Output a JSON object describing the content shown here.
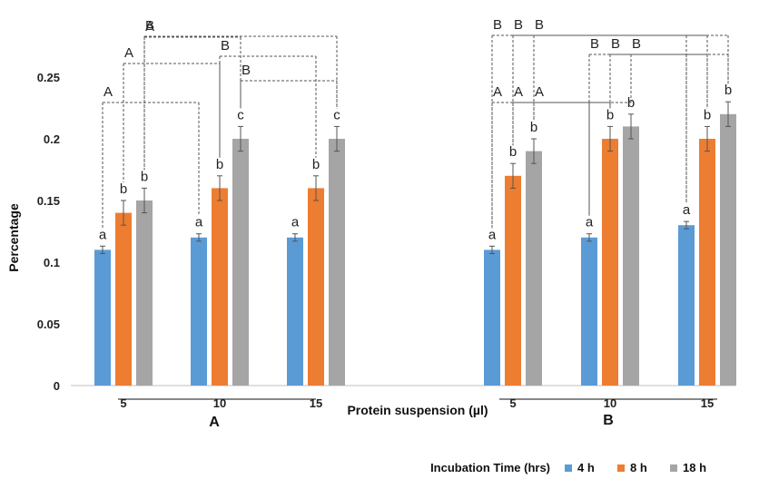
{
  "chart_data": {
    "type": "bar",
    "ylabel": "Percentage",
    "xlabel": "Protein suspension (µl)",
    "ylim": [
      0,
      0.25
    ],
    "y_ticks": [
      "0",
      "0.05",
      "0.1",
      "0.15",
      "0.2",
      "0.25"
    ],
    "legend_title": "Incubation Time (hrs)",
    "legend_position": "bottom-right",
    "grid": false,
    "series": [
      {
        "name": "4 h",
        "color": "#5B9BD5"
      },
      {
        "name": "8 h",
        "color": "#ED7D31"
      },
      {
        "name": "18 h",
        "color": "#A5A5A5"
      }
    ],
    "groups": [
      {
        "label": "A",
        "categories": [
          {
            "label": "5",
            "values": [
              0.11,
              0.14,
              0.15
            ],
            "errors": [
              0.003,
              0.01,
              0.01
            ],
            "letters": [
              "a",
              "b",
              "b"
            ]
          },
          {
            "label": "10",
            "values": [
              0.12,
              0.16,
              0.2
            ],
            "errors": [
              0.003,
              0.01,
              0.01
            ],
            "letters": [
              "a",
              "b",
              "c"
            ]
          },
          {
            "label": "15",
            "values": [
              0.12,
              0.16,
              0.2
            ],
            "errors": [
              0.003,
              0.01,
              0.01
            ],
            "letters": [
              "a",
              "b",
              "c"
            ]
          }
        ],
        "brackets": [
          {
            "series": 0,
            "letter": "A"
          },
          {
            "series": 1,
            "letter": "A"
          },
          {
            "series": 1,
            "letter": "B"
          },
          {
            "series": 2,
            "letter": "A"
          },
          {
            "series": 2,
            "letter": "B"
          },
          {
            "series": 2,
            "letter": "B"
          }
        ]
      },
      {
        "label": "B",
        "categories": [
          {
            "label": "5",
            "values": [
              0.11,
              0.17,
              0.19
            ],
            "errors": [
              0.003,
              0.01,
              0.01
            ],
            "letters": [
              "a",
              "b",
              "b"
            ]
          },
          {
            "label": "10",
            "values": [
              0.12,
              0.2,
              0.21
            ],
            "errors": [
              0.003,
              0.01,
              0.01
            ],
            "letters": [
              "a",
              "b",
              "b"
            ]
          },
          {
            "label": "15",
            "values": [
              0.13,
              0.2,
              0.22
            ],
            "errors": [
              0.003,
              0.01,
              0.01
            ],
            "letters": [
              "a",
              "b",
              "b"
            ]
          }
        ],
        "brackets": [
          {
            "series": 0,
            "letter": "A"
          },
          {
            "series": 0,
            "letter": "B"
          },
          {
            "series": 0,
            "letter": "B"
          },
          {
            "series": 1,
            "letter": "A"
          },
          {
            "series": 1,
            "letter": "B"
          },
          {
            "series": 1,
            "letter": "B"
          },
          {
            "series": 2,
            "letter": "A"
          },
          {
            "series": 2,
            "letter": "B"
          },
          {
            "series": 2,
            "letter": "B"
          }
        ]
      }
    ]
  }
}
